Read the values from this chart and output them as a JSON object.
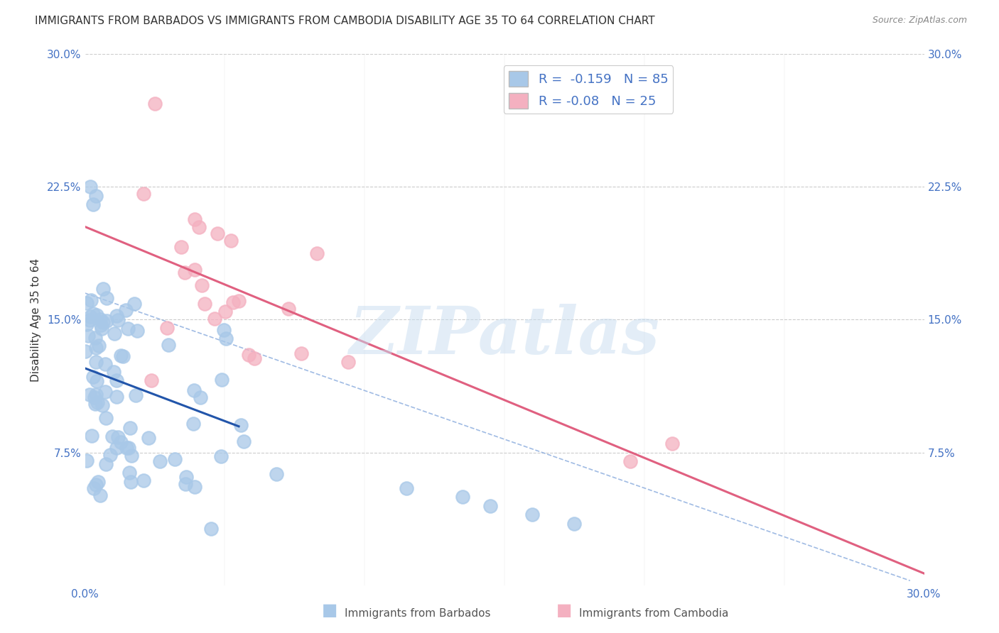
{
  "title": "IMMIGRANTS FROM BARBADOS VS IMMIGRANTS FROM CAMBODIA DISABILITY AGE 35 TO 64 CORRELATION CHART",
  "source": "Source: ZipAtlas.com",
  "ylabel": "Disability Age 35 to 64",
  "xlim": [
    0.0,
    0.3
  ],
  "ylim": [
    0.0,
    0.3
  ],
  "barbados_color": "#a8c8e8",
  "cambodia_color": "#f4b0c0",
  "barbados_line_color": "#2255aa",
  "cambodia_line_color": "#e06080",
  "dashed_line_color": "#88aadd",
  "grid_color": "#cccccc",
  "title_color": "#333333",
  "right_tick_color": "#4472c4",
  "axis_label_color": "#4472c4",
  "watermark": "ZIPatlas",
  "R_barbados": -0.159,
  "N_barbados": 85,
  "R_cambodia": -0.08,
  "N_cambodia": 25,
  "yticks": [
    0.075,
    0.15,
    0.225,
    0.3
  ],
  "ytick_labels": [
    "7.5%",
    "15.0%",
    "22.5%",
    "30.0%"
  ],
  "xticks": [
    0.0,
    0.3
  ],
  "xtick_labels": [
    "0.0%",
    "30.0%"
  ]
}
